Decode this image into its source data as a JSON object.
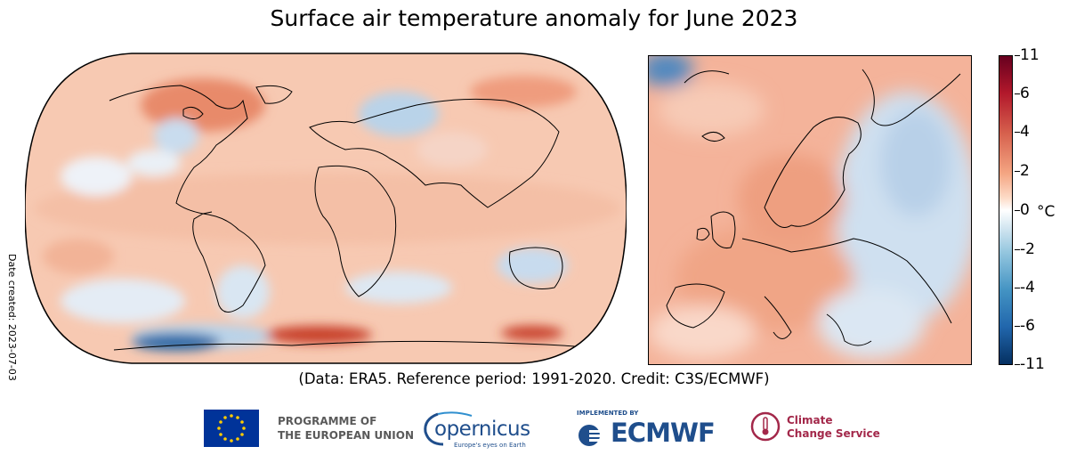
{
  "title": "Surface air temperature anomaly for June 2023",
  "date_created": "Date created: 2023-07-03",
  "credit": "(Data: ERA5.  Reference period: 1991-2020.  Credit: C3S/ECMWF)",
  "colorbar": {
    "unit": "°C",
    "ticks": [
      "11",
      "6",
      "4",
      "2",
      "0",
      "-2",
      "-4",
      "-6",
      "-11"
    ],
    "colors": [
      "#67001f",
      "#b2182b",
      "#d6604d",
      "#f4a582",
      "#fddbc7",
      "#ffffff",
      "#d1e5f0",
      "#92c5de",
      "#4393c3",
      "#2166ac",
      "#053061"
    ]
  },
  "logos": {
    "eu_line1": "PROGRAMME OF",
    "eu_line2": "THE EUROPEAN UNION",
    "copernicus": "opernicus",
    "copernicus_tag": "Europe's eyes on Earth",
    "implemented_by": "IMPLEMENTED BY",
    "ecmwf": "ECMWF",
    "ccs_line1": "Climate",
    "ccs_line2": "Change Service"
  }
}
